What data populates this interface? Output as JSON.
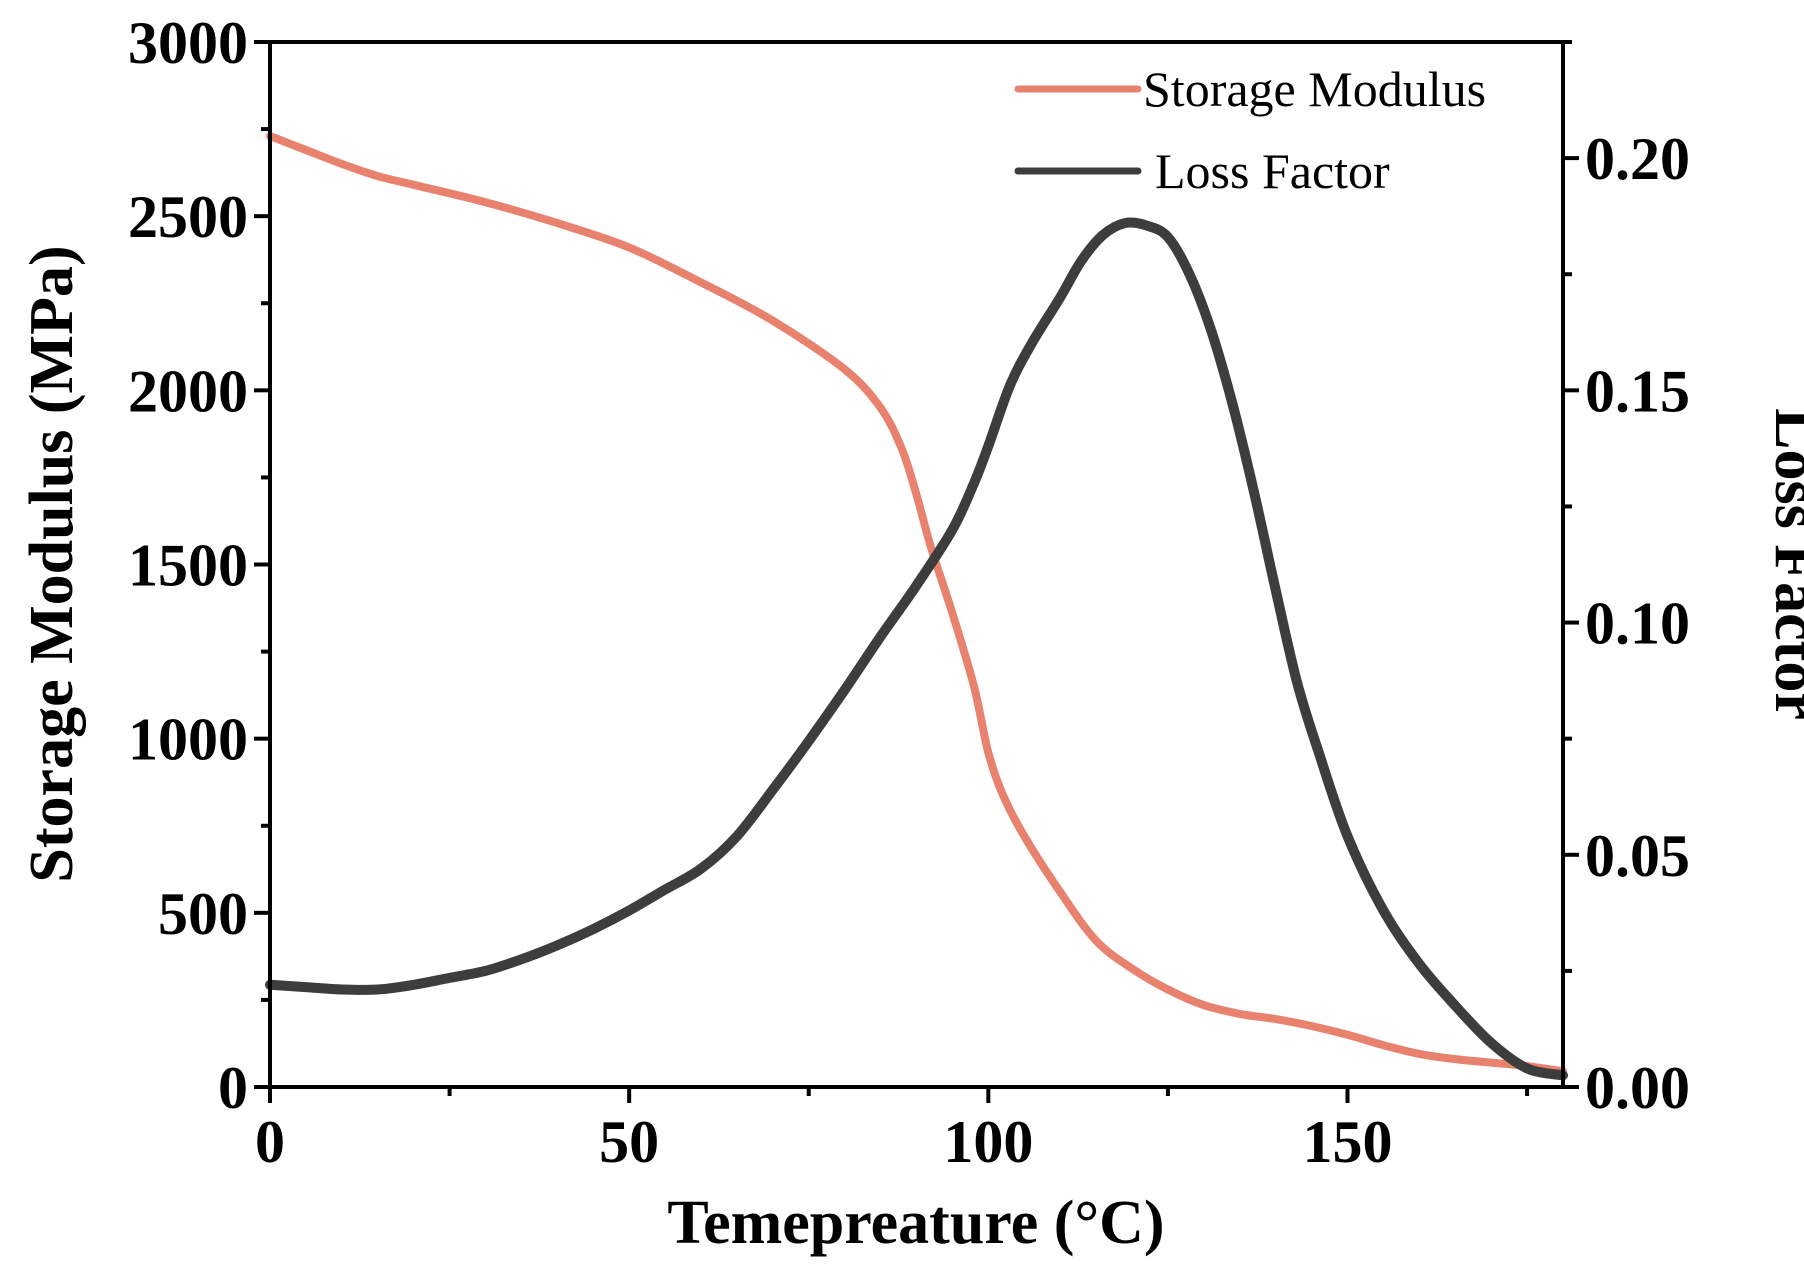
{
  "chart_data": {
    "type": "line",
    "title": "",
    "xlabel": "Temepreature (°C)",
    "ylabel": "Storage Modulus (MPa)",
    "y2label": "Loss Factor",
    "xlim": [
      0,
      180
    ],
    "ylim": [
      0,
      3000
    ],
    "y2lim": [
      0,
      0.225
    ],
    "xticks": [
      0,
      50,
      100,
      150
    ],
    "xtick_labels": [
      "0",
      "50",
      "100",
      "150"
    ],
    "yticks": [
      0,
      500,
      1000,
      1500,
      2000,
      2500,
      3000
    ],
    "ytick_labels": [
      "0",
      "500",
      "1000",
      "1500",
      "2000",
      "2500",
      "3000"
    ],
    "y2ticks": [
      0,
      0.05,
      0.1,
      0.15,
      0.2
    ],
    "y2tick_labels": [
      "0.00",
      "0.05",
      "0.10",
      "0.15",
      "0.20"
    ],
    "grid": false,
    "legend_position": "top-right",
    "series": [
      {
        "name": "Storage Modulus",
        "axis": "left",
        "color": "#e8826f",
        "x": [
          0,
          5,
          10,
          15,
          20,
          30,
          40,
          50,
          60,
          70,
          80,
          85,
          88,
          90,
          92,
          95,
          98,
          100,
          102,
          105,
          110,
          115,
          120,
          125,
          130,
          135,
          140,
          145,
          150,
          155,
          160,
          165,
          170,
          175,
          180
        ],
        "y": [
          2730,
          2690,
          2650,
          2615,
          2590,
          2540,
          2480,
          2410,
          2310,
          2200,
          2060,
          1950,
          1830,
          1700,
          1550,
          1360,
          1150,
          960,
          840,
          720,
          560,
          420,
          340,
          280,
          235,
          210,
          195,
          175,
          150,
          120,
          95,
          80,
          70,
          60,
          45
        ]
      },
      {
        "name": "Loss Factor",
        "axis": "right",
        "color": "#3d3d3d",
        "x": [
          0,
          5,
          10,
          15,
          20,
          25,
          30,
          35,
          40,
          45,
          50,
          55,
          60,
          65,
          70,
          75,
          80,
          85,
          90,
          95,
          98,
          100,
          103,
          106,
          110,
          113,
          116,
          119,
          122,
          125,
          128,
          131,
          134,
          137,
          140,
          143,
          146,
          150,
          155,
          160,
          165,
          170,
          175,
          180
        ],
        "y": [
          0.022,
          0.0215,
          0.021,
          0.021,
          0.022,
          0.0235,
          0.025,
          0.0275,
          0.0305,
          0.034,
          0.038,
          0.0425,
          0.047,
          0.054,
          0.064,
          0.0745,
          0.0855,
          0.097,
          0.108,
          0.12,
          0.13,
          0.138,
          0.151,
          0.16,
          0.17,
          0.178,
          0.1835,
          0.186,
          0.1855,
          0.183,
          0.175,
          0.163,
          0.147,
          0.128,
          0.107,
          0.087,
          0.072,
          0.054,
          0.038,
          0.0265,
          0.0175,
          0.0095,
          0.004,
          0.0025
        ]
      }
    ]
  }
}
